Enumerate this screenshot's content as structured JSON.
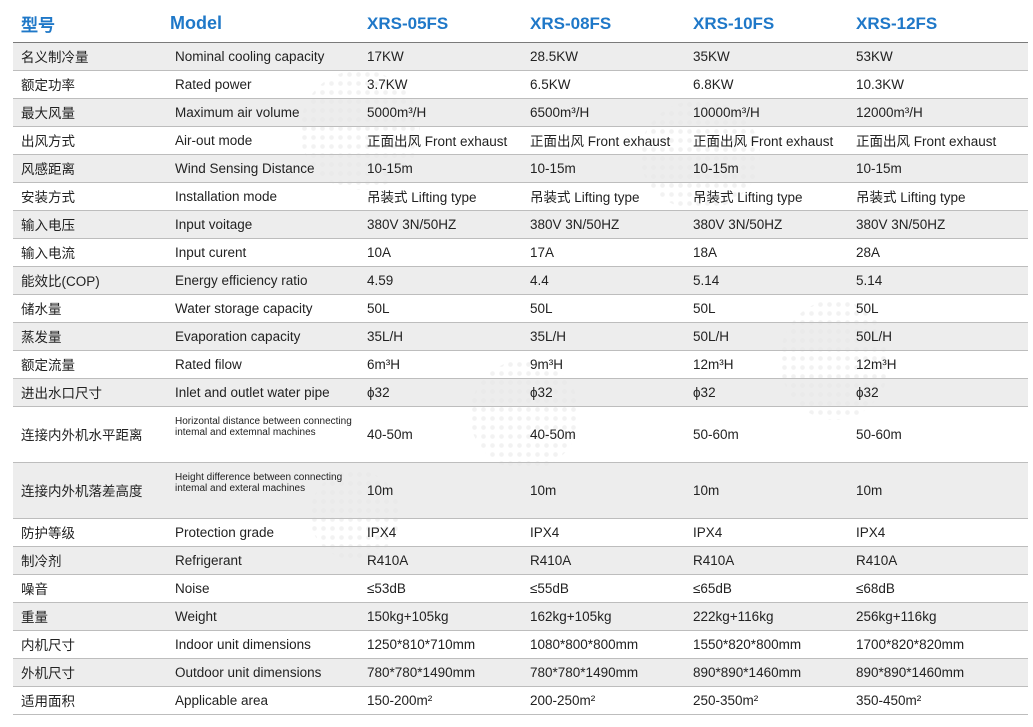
{
  "header": {
    "cn": "型号",
    "en": "Model",
    "models": [
      "XRS-05FS",
      "XRS-08FS",
      "XRS-10FS",
      "XRS-12FS"
    ]
  },
  "rows": [
    {
      "cn": "名义制冷量",
      "en": "Nominal cooling capacity",
      "vals": [
        "17KW",
        "28.5KW",
        "35KW",
        "53KW"
      ]
    },
    {
      "cn": "额定功率",
      "en": "Rated power",
      "vals": [
        "3.7KW",
        "6.5KW",
        "6.8KW",
        "10.3KW"
      ]
    },
    {
      "cn": "最大风量",
      "en": "Maximum air volume",
      "vals": [
        "5000m³/H",
        "6500m³/H",
        "10000m³/H",
        "12000m³/H"
      ]
    },
    {
      "cn": "出风方式",
      "en": "Air-out mode",
      "vals": [
        "正面出风 Front exhaust",
        "正面出风 Front exhaust",
        "正面出风 Front exhaust",
        "正面出风 Front exhaust"
      ]
    },
    {
      "cn": "风感距离",
      "en": "Wind Sensing Distance",
      "vals": [
        "10-15m",
        "10-15m",
        "10-15m",
        "10-15m"
      ]
    },
    {
      "cn": "安装方式",
      "en": "Installation mode",
      "vals": [
        "吊装式 Lifting type",
        "吊装式 Lifting type",
        "吊装式 Lifting type",
        "吊装式 Lifting type"
      ]
    },
    {
      "cn": "输入电压",
      "en": "Input voitage",
      "vals": [
        "380V 3N/50HZ",
        "380V 3N/50HZ",
        "380V 3N/50HZ",
        "380V 3N/50HZ"
      ]
    },
    {
      "cn": "输入电流",
      "en": "Input curent",
      "vals": [
        "10A",
        "17A",
        "18A",
        "28A"
      ]
    },
    {
      "cn": "能效比(COP)",
      "en": "Energy efficiency ratio",
      "vals": [
        "4.59",
        "4.4",
        "5.14",
        "5.14"
      ]
    },
    {
      "cn": "储水量",
      "en": "Water storage capacity",
      "vals": [
        "50L",
        "50L",
        "50L",
        "50L"
      ]
    },
    {
      "cn": "蒸发量",
      "en": "Evaporation capacity",
      "vals": [
        "35L/H",
        "35L/H",
        "50L/H",
        "50L/H"
      ]
    },
    {
      "cn": "额定流量",
      "en": "Rated filow",
      "vals": [
        "6m³H",
        "9m³H",
        "12m³H",
        "12m³H"
      ]
    },
    {
      "cn": "进出水口尺寸",
      "en": "Inlet and outlet water pipe",
      "vals": [
        "ϕ32",
        "ϕ32",
        "ϕ32",
        "ϕ32"
      ]
    },
    {
      "cn": "连接内外机水平距离",
      "en": "Horizontal distance between connecting intemal and extemnal machines",
      "vals": [
        "40-50m",
        "40-50m",
        "50-60m",
        "50-60m"
      ]
    },
    {
      "cn": "连接内外机落差高度",
      "en": "Height difference between connecting intemal and exteral machines",
      "vals": [
        "10m",
        "10m",
        "10m",
        "10m"
      ]
    },
    {
      "cn": "防护等级",
      "en": "Protection grade",
      "vals": [
        "IPX4",
        "IPX4",
        "IPX4",
        "IPX4"
      ]
    },
    {
      "cn": "制冷剂",
      "en": "Refrigerant",
      "vals": [
        "R410A",
        "R410A",
        "R410A",
        "R410A"
      ]
    },
    {
      "cn": "噪音",
      "en": "Noise",
      "vals": [
        "≤53dB",
        "≤55dB",
        "≤65dB",
        "≤68dB"
      ]
    },
    {
      "cn": "重量",
      "en": "Weight",
      "vals": [
        "150kg+105kg",
        "162kg+105kg",
        "222kg+116kg",
        "256kg+116kg"
      ]
    },
    {
      "cn": "内机尺寸",
      "en": "Indoor unit dimensions",
      "vals": [
        "1250*810*710mm",
        "1080*800*800mm",
        "1550*820*800mm",
        "1700*820*820mm"
      ]
    },
    {
      "cn": "外机尺寸",
      "en": "Outdoor unit dimensions",
      "vals": [
        "780*780*1490mm",
        "780*780*1490mm",
        "890*890*1460mm",
        "890*890*1460mm"
      ]
    },
    {
      "cn": "适用面积",
      "en": "Applicable area",
      "vals": [
        "150-200m²",
        "200-250m²",
        "250-350m²",
        "350-450m²"
      ]
    }
  ]
}
